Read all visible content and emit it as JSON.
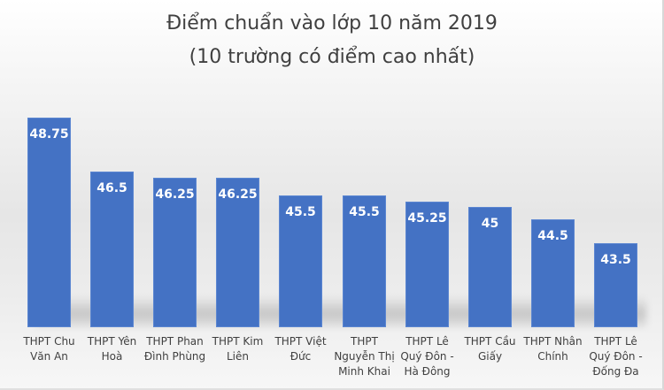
{
  "chart_data": {
    "type": "bar",
    "title": "Điểm chuẩn vào lớp 10 năm 2019",
    "subtitle": "(10 trường có điểm cao nhất)",
    "xlabel": "",
    "ylabel": "",
    "ylim": [
      40,
      49
    ],
    "grid": false,
    "legend": "none",
    "bar_color": "#4472c4",
    "categories": [
      "THPT Chu\nVăn An",
      "THPT Yên\nHoà",
      "THPT Phan\nĐình Phùng",
      "THPT Kim\nLiên",
      "THPT Việt\nĐức",
      "THPT\nNguyễn Thị\nMinh Khai",
      "THPT Lê\nQuý Đôn -\nHà Đông",
      "THPT Cầu\nGiấy",
      "THPT Nhân\nChính",
      "THPT Lê\nQuý Đôn -\nĐống Đa"
    ],
    "values": [
      48.75,
      46.5,
      46.25,
      46.25,
      45.5,
      45.5,
      45.25,
      45,
      44.5,
      43.5
    ],
    "value_labels": [
      "48.75",
      "46.5",
      "46.25",
      "46.25",
      "45.5",
      "45.5",
      "45.25",
      "45",
      "44.5",
      "43.5"
    ]
  }
}
